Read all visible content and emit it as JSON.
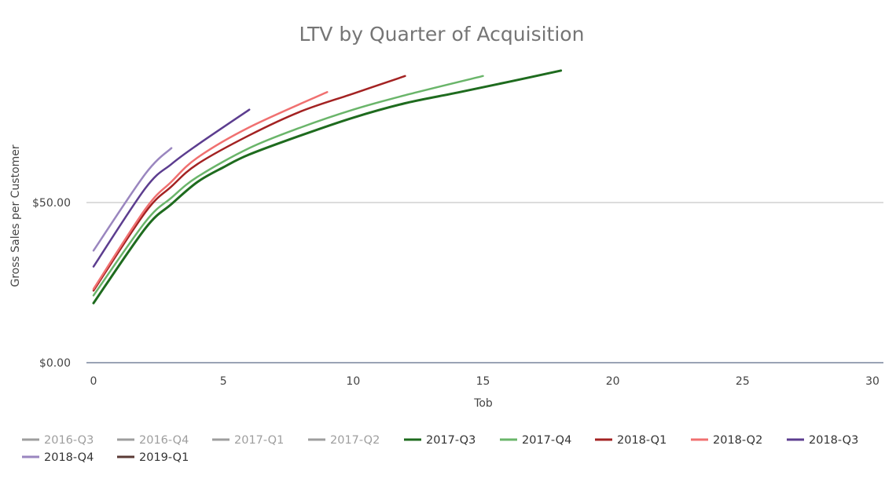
{
  "chart_data": {
    "type": "line",
    "title": "LTV by Quarter of Acquisition",
    "xlabel": "Tob",
    "ylabel": "Gross Sales per Customer",
    "xlim": [
      0,
      30
    ],
    "ylim": [
      0,
      100
    ],
    "x_ticks": [
      0,
      5,
      10,
      15,
      20,
      25,
      30
    ],
    "y_ticks": [
      {
        "value": 0,
        "label": "$0.00"
      },
      {
        "value": 50,
        "label": "$50.00"
      }
    ],
    "grid": "horizontal",
    "legend_placement": "bottom",
    "series": [
      {
        "name": "2016-Q3",
        "color": "#9e9e9e",
        "inactive": true,
        "points": []
      },
      {
        "name": "2016-Q4",
        "color": "#9e9e9e",
        "inactive": true,
        "points": []
      },
      {
        "name": "2017-Q1",
        "color": "#9e9e9e",
        "inactive": true,
        "points": []
      },
      {
        "name": "2017-Q2",
        "color": "#9e9e9e",
        "inactive": true,
        "points": []
      },
      {
        "name": "2017-Q3",
        "color": "#1e6b1e",
        "points": [
          [
            0,
            18.6
          ],
          [
            2,
            42
          ],
          [
            3,
            49.5
          ],
          [
            4,
            56.4
          ],
          [
            5,
            61
          ],
          [
            6,
            65
          ],
          [
            8,
            71
          ],
          [
            10,
            76.5
          ],
          [
            12,
            81
          ],
          [
            14,
            84.3
          ],
          [
            16,
            87.7
          ],
          [
            18,
            91.2
          ]
        ]
      },
      {
        "name": "2017-Q4",
        "color": "#6ab56a",
        "points": [
          [
            0,
            21
          ],
          [
            2,
            44
          ],
          [
            3,
            51.5
          ],
          [
            4,
            58
          ],
          [
            6,
            67
          ],
          [
            8,
            73.5
          ],
          [
            10,
            79
          ],
          [
            12,
            83.5
          ],
          [
            15,
            89.5
          ]
        ]
      },
      {
        "name": "2018-Q1",
        "color": "#a32222",
        "points": [
          [
            0,
            22.5
          ],
          [
            2,
            47
          ],
          [
            3,
            55
          ],
          [
            4,
            62
          ],
          [
            6,
            71
          ],
          [
            8,
            78.5
          ],
          [
            10,
            84
          ],
          [
            12,
            89.5
          ]
        ]
      },
      {
        "name": "2018-Q2",
        "color": "#f07070",
        "points": [
          [
            0,
            23
          ],
          [
            2,
            48
          ],
          [
            3,
            56.5
          ],
          [
            4,
            64
          ],
          [
            6,
            73.5
          ],
          [
            9,
            84.5
          ]
        ]
      },
      {
        "name": "2018-Q3",
        "color": "#5c3d8f",
        "points": [
          [
            0,
            30
          ],
          [
            2,
            54.5
          ],
          [
            3,
            62
          ],
          [
            4,
            68
          ],
          [
            6,
            79
          ]
        ]
      },
      {
        "name": "2018-Q4",
        "color": "#9a86bf",
        "points": [
          [
            0,
            35
          ],
          [
            2,
            59
          ],
          [
            3,
            67
          ]
        ]
      },
      {
        "name": "2019-Q1",
        "color": "#5a3a34",
        "points": []
      }
    ]
  }
}
